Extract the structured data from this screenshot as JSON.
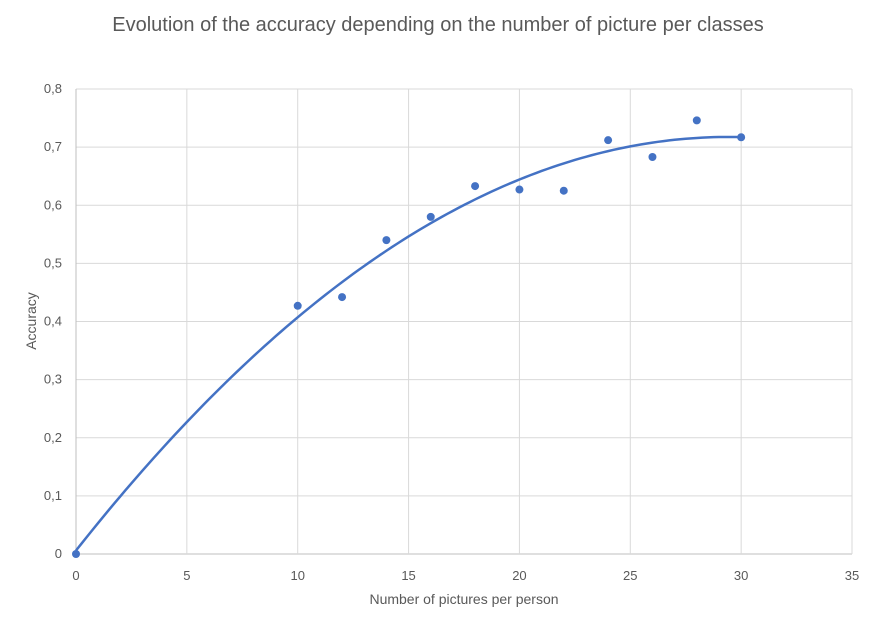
{
  "chart_data": {
    "type": "scatter",
    "title": "Evolution of the accuracy depending on the number of picture per classes",
    "xlabel": "Number of pictures per person",
    "ylabel": "Accuracy",
    "xlim": [
      0,
      35
    ],
    "ylim": [
      0,
      0.8
    ],
    "x_ticks": [
      0,
      5,
      10,
      15,
      20,
      25,
      30,
      35
    ],
    "x_tick_labels": [
      "0",
      "5",
      "10",
      "15",
      "20",
      "25",
      "30",
      "35"
    ],
    "y_ticks": [
      0,
      0.1,
      0.2,
      0.3,
      0.4,
      0.5,
      0.6,
      0.7,
      0.8
    ],
    "y_tick_labels": [
      "0",
      "0,1",
      "0,2",
      "0,3",
      "0,4",
      "0,5",
      "0,6",
      "0,7",
      "0,8"
    ],
    "grid": true,
    "legend": false,
    "series": [
      {
        "x": [
          0,
          10,
          12,
          14,
          16,
          18,
          20,
          22,
          24,
          26,
          28,
          30
        ],
        "y": [
          0.0,
          0.427,
          0.442,
          0.54,
          0.58,
          0.633,
          0.627,
          0.625,
          0.712,
          0.683,
          0.746,
          0.717
        ],
        "color": "#4472c4"
      }
    ],
    "trendline": {
      "type": "polynomial",
      "x_range": [
        0,
        30
      ],
      "color": "#4472c4"
    }
  }
}
